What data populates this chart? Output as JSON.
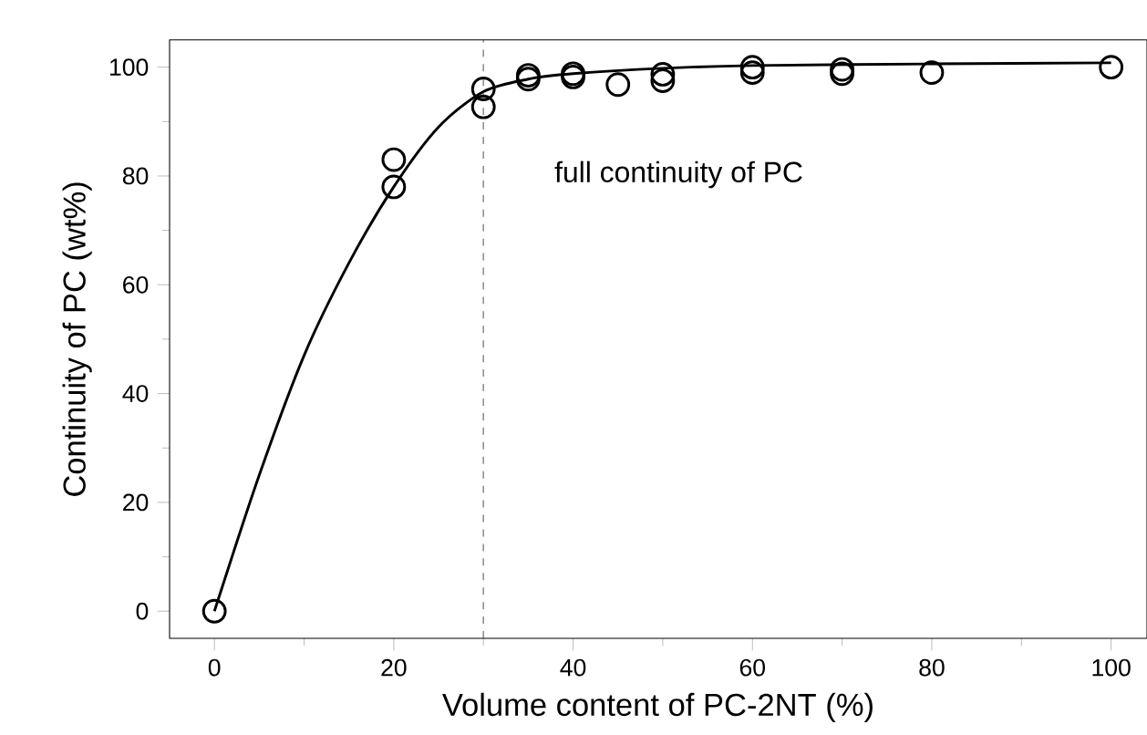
{
  "chart_data": {
    "type": "scatter",
    "xlabel": "Volume content of PC-2NT (%)",
    "ylabel": "Continuity of PC (wt%)",
    "xlim": [
      -5,
      104
    ],
    "ylim": [
      -5,
      105
    ],
    "xticks": [
      0,
      20,
      40,
      60,
      80,
      100
    ],
    "yticks": [
      0,
      20,
      40,
      60,
      80,
      100
    ],
    "grid": false,
    "series": [
      {
        "color": "#000000",
        "marker": "circle",
        "x": [
          0,
          20,
          20,
          30,
          30,
          35,
          35,
          40,
          40,
          45,
          50,
          50,
          60,
          60,
          70,
          70,
          80,
          100
        ],
        "values": [
          0,
          83,
          78,
          96,
          92.7,
          98.5,
          97.8,
          98.8,
          98.2,
          96.8,
          98.7,
          97.5,
          100,
          99,
          99.6,
          98.8,
          99,
          100
        ]
      },
      {
        "type": "line",
        "color": "#000000",
        "marker": "none",
        "line_style": "solid",
        "x": [
          0,
          5,
          10,
          15,
          20,
          25,
          30,
          35,
          40,
          50,
          60,
          80,
          100
        ],
        "values": [
          0,
          25,
          47,
          64,
          78,
          89,
          95.5,
          97.8,
          98.8,
          99.8,
          100.3,
          100.6,
          100.8
        ]
      }
    ],
    "ref_lines": [
      {
        "axis": "x",
        "value": 30,
        "line_style": "dashed",
        "color": "#333333"
      }
    ],
    "annotations": [
      "full continuity of PC"
    ]
  }
}
